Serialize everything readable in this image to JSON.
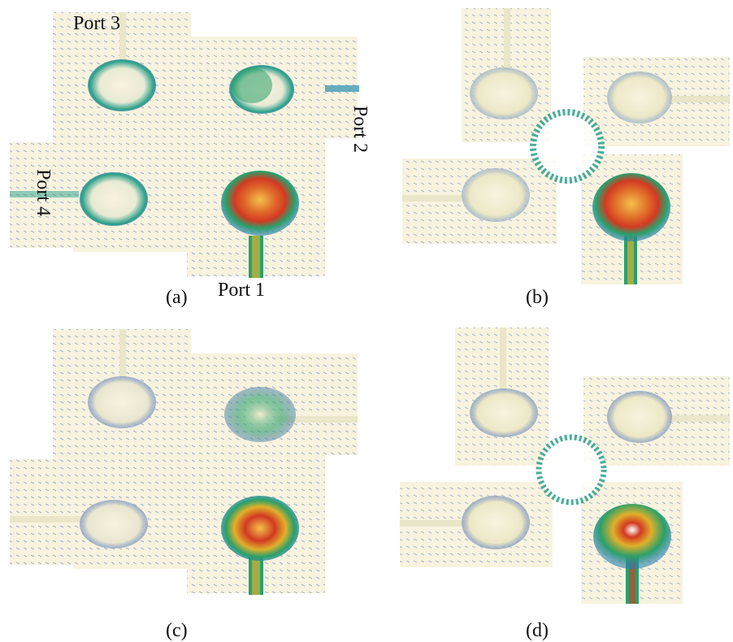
{
  "figure": {
    "panels": [
      {
        "caption": "(a)",
        "layout": "coupled",
        "excited_port": "Port 1"
      },
      {
        "caption": "(b)",
        "layout": "split"
      },
      {
        "caption": "(c)",
        "layout": "coupled"
      },
      {
        "caption": "(d)",
        "layout": "split"
      }
    ],
    "port_labels": {
      "port1": "Port 1",
      "port2": "Port 2",
      "port3": "Port 3",
      "port4": "Port 4"
    },
    "colors": {
      "background": "#f8f3df",
      "low": "#3a5fb0",
      "mid": "#2aa08a",
      "high": "#e8902a",
      "peak": "#d62a1e"
    }
  }
}
